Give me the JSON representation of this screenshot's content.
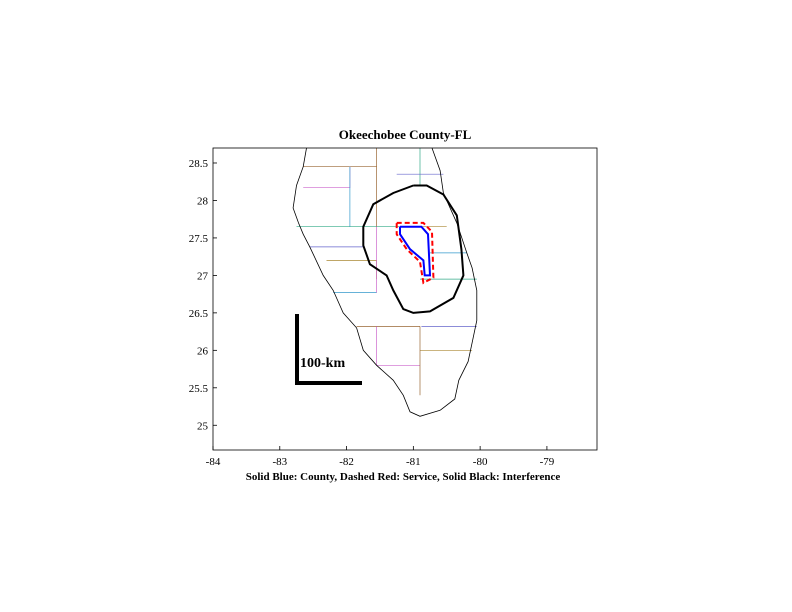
{
  "chart_data": {
    "type": "map",
    "title": "Okeechobee County-FL",
    "xlabel": "Solid Blue: County, Dashed Red: Service, Solid Black: Interference",
    "xlim": [
      -84,
      -78.25
    ],
    "ylim": [
      24.67,
      28.7
    ],
    "x_ticks": [
      -84,
      -83,
      -82,
      -81,
      -80,
      -79
    ],
    "y_ticks": [
      25,
      25.5,
      26,
      26.5,
      27,
      27.5,
      28,
      28.5
    ],
    "scale_bar_label": "100-km",
    "grid": false,
    "legend": "none",
    "colors": {
      "county": "#0000ff",
      "service": "#ff0000",
      "interference": "#000000",
      "coast": "#000000"
    },
    "county_boundary": [
      [
        -81.2,
        27.65
      ],
      [
        -80.88,
        27.65
      ],
      [
        -80.78,
        27.55
      ],
      [
        -80.75,
        27.0
      ],
      [
        -80.83,
        27.0
      ],
      [
        -80.85,
        27.2
      ],
      [
        -81.05,
        27.35
      ],
      [
        -81.2,
        27.55
      ],
      [
        -81.2,
        27.65
      ]
    ],
    "service_contour": [
      [
        -81.25,
        27.7
      ],
      [
        -80.85,
        27.7
      ],
      [
        -80.72,
        27.58
      ],
      [
        -80.7,
        26.97
      ],
      [
        -80.85,
        26.9
      ],
      [
        -80.9,
        27.18
      ],
      [
        -81.1,
        27.35
      ],
      [
        -81.25,
        27.55
      ],
      [
        -81.25,
        27.7
      ]
    ],
    "interference_contour": [
      [
        -81.0,
        28.2
      ],
      [
        -80.8,
        28.2
      ],
      [
        -80.55,
        28.08
      ],
      [
        -80.35,
        27.8
      ],
      [
        -80.28,
        27.35
      ],
      [
        -80.25,
        27.0
      ],
      [
        -80.4,
        26.7
      ],
      [
        -80.75,
        26.52
      ],
      [
        -81.0,
        26.5
      ],
      [
        -81.15,
        26.55
      ],
      [
        -81.3,
        26.8
      ],
      [
        -81.4,
        27.0
      ],
      [
        -81.65,
        27.15
      ],
      [
        -81.75,
        27.4
      ],
      [
        -81.75,
        27.65
      ],
      [
        -81.6,
        27.95
      ],
      [
        -81.3,
        28.1
      ],
      [
        -81.0,
        28.2
      ]
    ],
    "coastline_west": [
      [
        -82.6,
        28.7
      ],
      [
        -82.65,
        28.45
      ],
      [
        -82.75,
        28.2
      ],
      [
        -82.8,
        27.9
      ],
      [
        -82.72,
        27.7
      ],
      [
        -82.65,
        27.55
      ],
      [
        -82.55,
        27.38
      ],
      [
        -82.35,
        27.0
      ],
      [
        -82.2,
        26.8
      ],
      [
        -82.05,
        26.5
      ],
      [
        -81.85,
        26.3
      ],
      [
        -81.75,
        26.0
      ],
      [
        -81.55,
        25.8
      ],
      [
        -81.3,
        25.6
      ],
      [
        -81.15,
        25.4
      ],
      [
        -81.05,
        25.18
      ],
      [
        -80.9,
        25.12
      ],
      [
        -80.6,
        25.2
      ]
    ],
    "coastline_east": [
      [
        -80.6,
        25.2
      ],
      [
        -80.38,
        25.35
      ],
      [
        -80.32,
        25.6
      ],
      [
        -80.18,
        25.85
      ],
      [
        -80.12,
        26.1
      ],
      [
        -80.05,
        26.4
      ],
      [
        -80.05,
        26.8
      ],
      [
        -80.12,
        27.1
      ],
      [
        -80.2,
        27.3
      ],
      [
        -80.35,
        27.7
      ],
      [
        -80.55,
        28.1
      ],
      [
        -80.6,
        28.4
      ],
      [
        -80.72,
        28.7
      ]
    ],
    "county_lines": [
      [
        [
          -82.65,
          28.45
        ],
        [
          -81.55,
          28.45
        ]
      ],
      [
        [
          -82.65,
          28.17
        ],
        [
          -81.95,
          28.17
        ],
        [
          -81.95,
          28.45
        ]
      ],
      [
        [
          -82.75,
          27.65
        ],
        [
          -81.2,
          27.65
        ]
      ],
      [
        [
          -82.55,
          27.38
        ],
        [
          -81.75,
          27.38
        ]
      ],
      [
        [
          -82.3,
          27.2
        ],
        [
          -81.55,
          27.2
        ],
        [
          -81.55,
          26.95
        ]
      ],
      [
        [
          -82.2,
          26.77
        ],
        [
          -81.55,
          26.77
        ]
      ],
      [
        [
          -81.85,
          26.32
        ],
        [
          -80.9,
          26.32
        ]
      ],
      [
        [
          -81.55,
          25.8
        ],
        [
          -80.9,
          25.8
        ]
      ],
      [
        [
          -80.9,
          26.95
        ],
        [
          -80.05,
          26.95
        ]
      ],
      [
        [
          -80.88,
          26.32
        ],
        [
          -80.05,
          26.32
        ]
      ],
      [
        [
          -80.9,
          26.0
        ],
        [
          -80.12,
          26.0
        ]
      ],
      [
        [
          -81.95,
          28.45
        ],
        [
          -81.95,
          27.65
        ]
      ],
      [
        [
          -81.55,
          28.7
        ],
        [
          -81.55,
          27.65
        ]
      ],
      [
        [
          -81.55,
          27.65
        ],
        [
          -81.55,
          26.77
        ]
      ],
      [
        [
          -80.9,
          28.7
        ],
        [
          -80.9,
          28.2
        ]
      ],
      [
        [
          -81.25,
          28.35
        ],
        [
          -80.55,
          28.35
        ]
      ],
      [
        [
          -80.88,
          27.65
        ],
        [
          -80.5,
          27.65
        ]
      ],
      [
        [
          -80.75,
          27.3
        ],
        [
          -80.2,
          27.3
        ]
      ],
      [
        [
          -80.9,
          26.32
        ],
        [
          -80.9,
          25.4
        ]
      ],
      [
        [
          -81.55,
          26.32
        ],
        [
          -81.55,
          25.8
        ]
      ]
    ]
  }
}
